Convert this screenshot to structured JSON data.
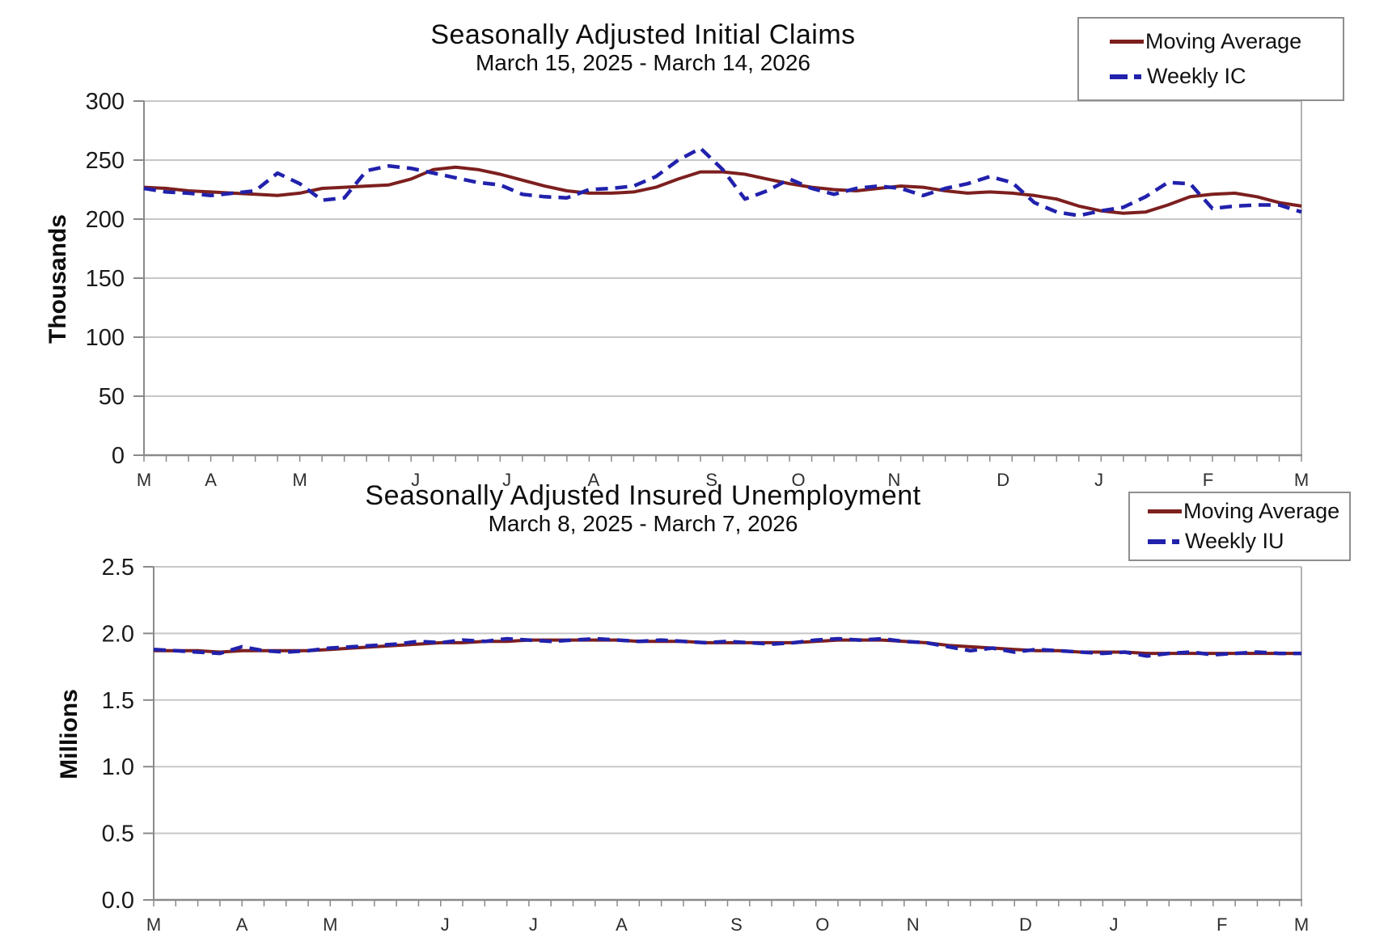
{
  "colors": {
    "moving_average": "#7d1f1f",
    "weekly": "#2121ac",
    "grid": "#c7c7c7",
    "axis": "#8a8a8a",
    "right_border": "#b3b3b3",
    "text": "#1a1a1a",
    "month_text": "#2f2f2f",
    "legend_border": "#8e8e8e",
    "background": "#ffffff"
  },
  "chart_data": [
    {
      "type": "line",
      "title": "Seasonally Adjusted Initial Claims",
      "subtitle": "March 15, 2025 - March 14, 2026",
      "ylabel": "Thousands",
      "ylim": [
        0,
        300
      ],
      "grid": "horizontal",
      "legend_position": "top-right",
      "weeks": 53,
      "yticks": [
        {
          "value": 300,
          "label": "300"
        },
        {
          "value": 250,
          "label": "250"
        },
        {
          "value": 200,
          "label": "200"
        },
        {
          "value": 150,
          "label": "150"
        },
        {
          "value": 100,
          "label": "100"
        },
        {
          "value": 50,
          "label": "50"
        },
        {
          "value": 0,
          "label": "0"
        }
      ],
      "months": [
        {
          "week": 0,
          "label": "M"
        },
        {
          "week": 3,
          "label": "A"
        },
        {
          "week": 7,
          "label": "M"
        },
        {
          "week": 12.2,
          "label": "J"
        },
        {
          "week": 16.3,
          "label": "J"
        },
        {
          "week": 20.2,
          "label": "A"
        },
        {
          "week": 25.5,
          "label": "S"
        },
        {
          "week": 29.4,
          "label": "O"
        },
        {
          "week": 33.7,
          "label": "N"
        },
        {
          "week": 38.6,
          "label": "D"
        },
        {
          "week": 42.9,
          "label": "J"
        },
        {
          "week": 47.8,
          "label": "F"
        },
        {
          "week": 52,
          "label": "M"
        }
      ],
      "legend": [
        {
          "label": "Moving Average",
          "style": "solid"
        },
        {
          "label": "Weekly IC",
          "style": "dashed"
        }
      ],
      "series": [
        {
          "name": "Moving Average",
          "values": [
            227,
            226,
            224,
            223,
            222,
            221,
            220,
            222,
            226,
            227,
            228,
            229,
            234,
            242,
            244,
            242,
            238,
            233,
            228,
            224,
            222,
            222,
            223,
            227,
            234,
            240,
            240,
            238,
            234,
            230,
            227,
            225,
            224,
            226,
            228,
            227,
            224,
            222,
            223,
            222,
            220,
            217,
            211,
            207,
            205,
            206,
            212,
            219,
            221,
            222,
            219,
            214,
            211
          ]
        },
        {
          "name": "Weekly IC",
          "values": [
            226,
            223,
            222,
            220,
            222,
            224,
            239,
            230,
            216,
            218,
            241,
            245,
            243,
            239,
            235,
            231,
            229,
            221,
            219,
            218,
            225,
            226,
            228,
            236,
            250,
            260,
            242,
            217,
            224,
            234,
            226,
            221,
            226,
            228,
            226,
            220,
            226,
            230,
            236,
            231,
            214,
            206,
            203,
            207,
            210,
            219,
            231,
            230,
            209,
            211,
            212,
            212,
            206
          ]
        }
      ]
    },
    {
      "type": "line",
      "title": "Seasonally Adjusted Insured Unemployment",
      "subtitle": "March 8, 2025 - March 7, 2026",
      "ylabel": "Millions",
      "ylim": [
        0,
        2.5
      ],
      "grid": "horizontal",
      "legend_position": "top-right",
      "weeks": 53,
      "yticks": [
        {
          "value": 2.5,
          "label": "2.5"
        },
        {
          "value": 2.0,
          "label": "2.0"
        },
        {
          "value": 1.5,
          "label": "1.5"
        },
        {
          "value": 1.0,
          "label": "1.0"
        },
        {
          "value": 0.5,
          "label": "0.5"
        },
        {
          "value": 0.0,
          "label": "0.0"
        }
      ],
      "months": [
        {
          "week": 0,
          "label": "M"
        },
        {
          "week": 4,
          "label": "A"
        },
        {
          "week": 8,
          "label": "M"
        },
        {
          "week": 13.2,
          "label": "J"
        },
        {
          "week": 17.2,
          "label": "J"
        },
        {
          "week": 21.2,
          "label": "A"
        },
        {
          "week": 26.4,
          "label": "S"
        },
        {
          "week": 30.3,
          "label": "O"
        },
        {
          "week": 34.4,
          "label": "N"
        },
        {
          "week": 39.5,
          "label": "D"
        },
        {
          "week": 43.5,
          "label": "J"
        },
        {
          "week": 48.4,
          "label": "F"
        },
        {
          "week": 52,
          "label": "M"
        }
      ],
      "legend": [
        {
          "label": "Moving Average",
          "style": "solid"
        },
        {
          "label": "Weekly IU",
          "style": "dashed"
        }
      ],
      "series": [
        {
          "name": "Moving Average",
          "values": [
            1.87,
            1.87,
            1.87,
            1.86,
            1.87,
            1.87,
            1.87,
            1.87,
            1.88,
            1.89,
            1.9,
            1.91,
            1.92,
            1.93,
            1.93,
            1.94,
            1.94,
            1.95,
            1.95,
            1.95,
            1.95,
            1.95,
            1.94,
            1.94,
            1.94,
            1.93,
            1.93,
            1.93,
            1.93,
            1.93,
            1.94,
            1.95,
            1.95,
            1.95,
            1.94,
            1.93,
            1.91,
            1.9,
            1.89,
            1.88,
            1.87,
            1.87,
            1.86,
            1.86,
            1.86,
            1.85,
            1.85,
            1.85,
            1.85,
            1.85,
            1.85,
            1.85,
            1.85
          ]
        },
        {
          "name": "Weekly IU",
          "values": [
            1.88,
            1.87,
            1.86,
            1.85,
            1.9,
            1.87,
            1.86,
            1.87,
            1.89,
            1.9,
            1.91,
            1.92,
            1.94,
            1.93,
            1.95,
            1.94,
            1.96,
            1.95,
            1.94,
            1.95,
            1.96,
            1.95,
            1.94,
            1.95,
            1.94,
            1.93,
            1.94,
            1.93,
            1.92,
            1.93,
            1.95,
            1.96,
            1.95,
            1.96,
            1.94,
            1.93,
            1.9,
            1.87,
            1.89,
            1.86,
            1.88,
            1.87,
            1.86,
            1.85,
            1.86,
            1.83,
            1.85,
            1.86,
            1.84,
            1.85,
            1.86,
            1.85,
            1.85
          ]
        }
      ]
    }
  ]
}
